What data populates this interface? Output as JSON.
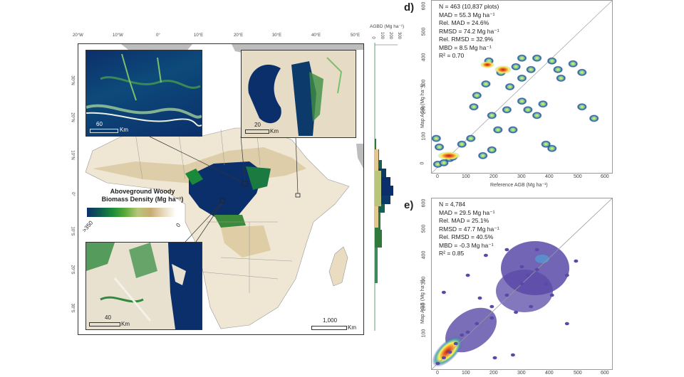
{
  "map": {
    "lon_ticks": [
      "20°W",
      "10°W",
      "0°",
      "10°E",
      "20°E",
      "30°E",
      "40°E",
      "50°E"
    ],
    "lat_ticks": [
      "30°N",
      "20°N",
      "10°N",
      "0°",
      "10°S",
      "20°S",
      "30°S"
    ],
    "legend": {
      "title_line1": "Aboveground Woody",
      "title_line2": "Biomass Density (Mg ha⁻¹)",
      "min_label": "0",
      "max_label": ">350",
      "colors": [
        "#0b2f6b",
        "#0d5a52",
        "#1a8a3a",
        "#5aaa3a",
        "#b9c67a",
        "#c8ab72",
        "#e8d9bc",
        "#ffffff"
      ]
    },
    "scale_bar": {
      "value": "1,000",
      "unit": "Km"
    },
    "insets": [
      {
        "id": "top-left",
        "scale_value": "60",
        "unit": "Km"
      },
      {
        "id": "top-right",
        "scale_value": "20",
        "unit": "Km"
      },
      {
        "id": "bottom-left",
        "scale_value": "40",
        "unit": "Km"
      }
    ]
  },
  "histogram": {
    "title": "AGBD (Mg ha⁻¹)",
    "ticks": [
      "0",
      "100",
      "200",
      "300"
    ]
  },
  "chart_data": [
    {
      "panel": "d)",
      "type": "scatter",
      "subtype": "density",
      "xlabel": "Reference AGB (Mg ha⁻¹)",
      "ylabel": "Map AGB (Mg ha⁻¹)",
      "xlim": [
        0,
        600
      ],
      "ylim": [
        0,
        600
      ],
      "x_ticks": [
        "0",
        "100",
        "200",
        "300",
        "400",
        "500",
        "600"
      ],
      "y_ticks": [
        "0",
        "100",
        "200",
        "300",
        "400",
        "500",
        "600"
      ],
      "one_to_one_line": true,
      "stats": {
        "N": "N = 463 (10,837 plots)",
        "MAD": "MAD =  55.3 Mg ha⁻¹",
        "RelMAD": "Rel. MAD = 24.6%",
        "RMSD": "RMSD = 74.2 Mg ha⁻¹",
        "RelRMSD": "Rel. RMSD =  32.9%",
        "MBD": "MBD = 8.5 Mg ha⁻¹",
        "R2": "R² = 0.70"
      },
      "points_approx": [
        [
          20,
          30
        ],
        [
          40,
          35
        ],
        [
          60,
          50
        ],
        [
          70,
          55
        ],
        [
          15,
          120
        ],
        [
          25,
          90
        ],
        [
          100,
          100
        ],
        [
          130,
          120
        ],
        [
          170,
          60
        ],
        [
          200,
          80
        ],
        [
          230,
          350
        ],
        [
          280,
          370
        ],
        [
          330,
          360
        ],
        [
          300,
          330
        ],
        [
          260,
          300
        ],
        [
          300,
          250
        ],
        [
          250,
          220
        ],
        [
          320,
          220
        ],
        [
          350,
          200
        ],
        [
          370,
          240
        ],
        [
          200,
          200
        ],
        [
          180,
          310
        ],
        [
          140,
          230
        ],
        [
          150,
          270
        ],
        [
          190,
          390
        ],
        [
          300,
          400
        ],
        [
          350,
          400
        ],
        [
          400,
          390
        ],
        [
          420,
          360
        ],
        [
          470,
          380
        ],
        [
          500,
          350
        ],
        [
          500,
          230
        ],
        [
          540,
          190
        ],
        [
          380,
          100
        ],
        [
          400,
          85
        ],
        [
          430,
          330
        ],
        [
          270,
          150
        ],
        [
          220,
          150
        ]
      ]
    },
    {
      "panel": "e)",
      "type": "scatter",
      "subtype": "density",
      "xlabel": "",
      "ylabel": "Map AGB (Mg ha⁻¹)",
      "xlim": [
        0,
        600
      ],
      "ylim": [
        0,
        600
      ],
      "x_ticks": [
        "0",
        "100",
        "200",
        "300",
        "400",
        "500",
        "600"
      ],
      "y_ticks": [
        "",
        "100",
        "200",
        "300",
        "400",
        "500",
        "600"
      ],
      "one_to_one_line": true,
      "stats": {
        "N": "N = 4,784",
        "MAD": "MAD = 29.5 Mg ha⁻¹",
        "RelMAD": "Rel. MAD = 25.1%",
        "RMSD": "RMSD = 47.7 Mg ha⁻¹",
        "RelRMSD": "Rel. RMSD = 40.5%",
        "MBD": "MBD = -0.3 Mg ha⁻¹",
        "R2": "R² = 0.85"
      },
      "points_approx": [
        [
          20,
          20
        ],
        [
          40,
          40
        ],
        [
          60,
          60
        ],
        [
          80,
          90
        ],
        [
          100,
          120
        ],
        [
          120,
          130
        ],
        [
          150,
          160
        ],
        [
          200,
          220
        ],
        [
          250,
          260
        ],
        [
          300,
          300
        ],
        [
          320,
          330
        ],
        [
          350,
          350
        ],
        [
          300,
          360
        ],
        [
          380,
          300
        ],
        [
          400,
          260
        ],
        [
          330,
          220
        ],
        [
          280,
          200
        ],
        [
          200,
          180
        ],
        [
          160,
          250
        ],
        [
          450,
          330
        ],
        [
          480,
          380
        ],
        [
          350,
          420
        ],
        [
          250,
          420
        ],
        [
          450,
          160
        ],
        [
          270,
          50
        ],
        [
          210,
          40
        ],
        [
          40,
          270
        ],
        [
          120,
          330
        ],
        [
          180,
          400
        ]
      ]
    }
  ]
}
